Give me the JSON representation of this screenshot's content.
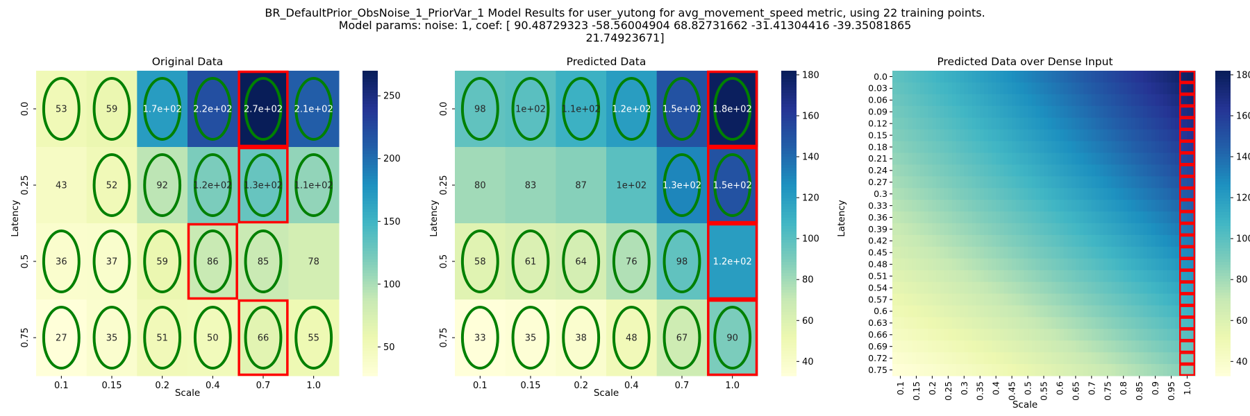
{
  "figure": {
    "title_lines": [
      "BR_DefaultPrior_ObsNoise_1_PriorVar_1 Model Results for user_yutong for avg_movement_speed metric, using 22 training points.",
      "Model params: noise: 1, coef: [ 90.48729323 -58.56004904  68.82731662 -31.41304416 -39.35081865",
      "21.74923671]"
    ]
  },
  "colors": {
    "cmap": [
      "#ffffd9",
      "#edf8b1",
      "#c7e9b4",
      "#7fcdbb",
      "#41b6c4",
      "#1d91c0",
      "#225ea8",
      "#253494",
      "#081d58"
    ],
    "ellipse": "#008000",
    "highlight": "#ff0000"
  },
  "chart_data": [
    {
      "type": "heatmap",
      "title": "Original Data",
      "xlabel": "Scale",
      "ylabel": "Latency",
      "x_ticks": [
        "0.1",
        "0.15",
        "0.2",
        "0.4",
        "0.7",
        "1.0"
      ],
      "y_ticks": [
        "0.0",
        "0.25",
        "0.5",
        "0.75"
      ],
      "values": [
        [
          53,
          59,
          170,
          220,
          270,
          210
        ],
        [
          43,
          52,
          92,
          120,
          130,
          110
        ],
        [
          36,
          37,
          59,
          86,
          85,
          78
        ],
        [
          27,
          35,
          51,
          50,
          66,
          55
        ]
      ],
      "labels": [
        [
          "53",
          "59",
          "1.7e+02",
          "2.2e+02",
          "2.7e+02",
          "2.1e+02"
        ],
        [
          "43",
          "52",
          "92",
          "1.2e+02",
          "1.3e+02",
          "1.1e+02"
        ],
        [
          "36",
          "37",
          "59",
          "86",
          "85",
          "78"
        ],
        [
          "27",
          "35",
          "51",
          "50",
          "66",
          "55"
        ]
      ],
      "ellipses": [
        [
          true,
          true,
          true,
          true,
          true,
          true
        ],
        [
          false,
          true,
          true,
          true,
          true,
          true
        ],
        [
          true,
          true,
          true,
          true,
          true,
          false
        ],
        [
          true,
          true,
          true,
          true,
          true,
          true
        ]
      ],
      "highlights": [
        [
          0,
          4
        ],
        [
          1,
          4
        ],
        [
          2,
          3
        ],
        [
          3,
          4
        ]
      ],
      "vmin": 27,
      "vmax": 270,
      "colorbar_ticks": [
        50,
        100,
        150,
        200,
        250
      ]
    },
    {
      "type": "heatmap",
      "title": "Predicted Data",
      "xlabel": "Scale",
      "ylabel": "Latency",
      "x_ticks": [
        "0.1",
        "0.15",
        "0.2",
        "0.4",
        "0.7",
        "1.0"
      ],
      "y_ticks": [
        "0.0",
        "0.25",
        "0.5",
        "0.75"
      ],
      "values": [
        [
          98,
          100,
          110,
          120,
          150,
          180
        ],
        [
          80,
          83,
          87,
          100,
          130,
          150
        ],
        [
          58,
          61,
          64,
          76,
          98,
          120
        ],
        [
          33,
          35,
          38,
          48,
          67,
          90
        ]
      ],
      "labels": [
        [
          "98",
          "1e+02",
          "1.1e+02",
          "1.2e+02",
          "1.5e+02",
          "1.8e+02"
        ],
        [
          "80",
          "83",
          "87",
          "1e+02",
          "1.3e+02",
          "1.5e+02"
        ],
        [
          "58",
          "61",
          "64",
          "76",
          "98",
          "1.2e+02"
        ],
        [
          "33",
          "35",
          "38",
          "48",
          "67",
          "90"
        ]
      ],
      "ellipses": [
        [
          true,
          true,
          true,
          true,
          true,
          true
        ],
        [
          false,
          false,
          false,
          false,
          true,
          true
        ],
        [
          true,
          true,
          true,
          true,
          true,
          false
        ],
        [
          true,
          true,
          true,
          true,
          true,
          true
        ]
      ],
      "highlights": [
        [
          0,
          5
        ],
        [
          1,
          5
        ],
        [
          2,
          5
        ],
        [
          3,
          5
        ]
      ],
      "vmin": 33,
      "vmax": 182,
      "colorbar_ticks": [
        40,
        60,
        80,
        100,
        120,
        140,
        160,
        180
      ]
    },
    {
      "type": "heatmap",
      "title": "Predicted Data over Dense Input",
      "xlabel": "Scale",
      "ylabel": "Latency",
      "x_ticks": [
        "0.1",
        "0.15",
        "0.2",
        "0.25",
        "0.3",
        "0.35",
        "0.4",
        "0.45",
        "0.5",
        "0.55",
        "0.6",
        "0.65",
        "0.7",
        "0.75",
        "0.8",
        "0.85",
        "0.9",
        "0.95",
        "1.0"
      ],
      "y_ticks": [
        "0.0",
        "0.03",
        "0.06",
        "0.09",
        "0.12",
        "0.15",
        "0.18",
        "0.21",
        "0.24",
        "0.27",
        "0.3",
        "0.33",
        "0.36",
        "0.39",
        "0.42",
        "0.45",
        "0.48",
        "0.51",
        "0.54",
        "0.57",
        "0.6",
        "0.63",
        "0.66",
        "0.69",
        "0.72",
        "0.75"
      ],
      "highlight_column": "1.0",
      "vmin": 33,
      "vmax": 182,
      "colorbar_ticks": [
        40,
        60,
        80,
        100,
        120,
        140,
        160,
        180
      ]
    }
  ]
}
